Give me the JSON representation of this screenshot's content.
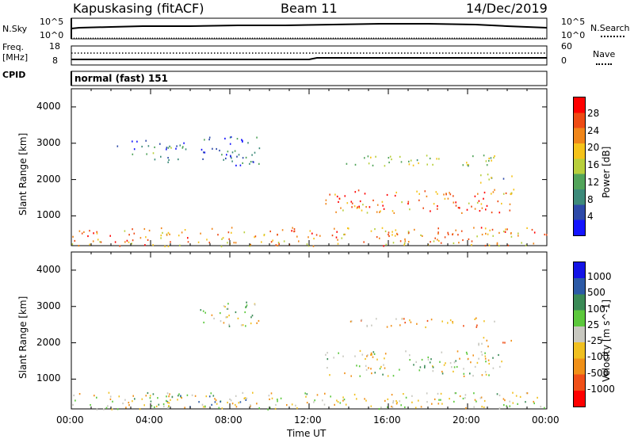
{
  "header": {
    "station": "Kapuskasing (fitACF)",
    "beam": "Beam 11",
    "date": "14/Dec/2019"
  },
  "top_panels": {
    "nsky_label": "N.Sky",
    "nsearch_label": "N.Search",
    "nsky_ticks": [
      "10^5",
      "10^0"
    ],
    "nsearch_ticks": [
      "10^5",
      "10^0"
    ],
    "freq_label": "Freq.",
    "freq_unit": "[MHz]",
    "freq_ticks": [
      "18",
      "8"
    ],
    "nave_label": "Nave",
    "nave_ticks": [
      "60",
      "0"
    ],
    "cpid_label": "CPID",
    "cpid_value": "normal (fast) 151"
  },
  "chart_data": [
    {
      "type": "heatmap",
      "name": "power",
      "ylabel": "Slant Range [km]",
      "yticks": [
        "1000",
        "2000",
        "3000",
        "4000"
      ],
      "ylim": [
        180,
        4500
      ],
      "colorbar_label": "Power [dB]",
      "colorbar_ticks": [
        "4",
        "8",
        "12",
        "16",
        "20",
        "24",
        "28"
      ],
      "colors": [
        "#1414ff",
        "#2d4aa8",
        "#3d8a7a",
        "#52a45a",
        "#b8cf3c",
        "#f5c31a",
        "#f0861a",
        "#ee4b14",
        "#ff0000"
      ],
      "regions": [
        {
          "t0": 0.0,
          "t1": 24.0,
          "r0": 180,
          "r1": 700,
          "level": 0.7
        },
        {
          "t0": 2.3,
          "t1": 5.8,
          "r0": 2500,
          "r1": 3100,
          "level": 0.25
        },
        {
          "t0": 6.5,
          "t1": 9.5,
          "r0": 2400,
          "r1": 3200,
          "level": 0.2
        },
        {
          "t0": 12.8,
          "t1": 22.3,
          "r0": 1100,
          "r1": 1750,
          "level": 0.75
        },
        {
          "t0": 13.8,
          "t1": 21.8,
          "r0": 2400,
          "r1": 2700,
          "level": 0.45
        },
        {
          "t0": 20.5,
          "t1": 22.3,
          "r0": 1900,
          "r1": 2200,
          "level": 0.4
        }
      ]
    },
    {
      "type": "heatmap",
      "name": "velocity",
      "ylabel": "Slant Range [km]",
      "yticks": [
        "1000",
        "2000",
        "3000",
        "4000"
      ],
      "ylim": [
        180,
        4500
      ],
      "xlabel": "Time UT",
      "xticks": [
        "00:00",
        "04:00",
        "08:00",
        "12:00",
        "16:00",
        "20:00",
        "00:00"
      ],
      "xlim": [
        0,
        24
      ],
      "colorbar_label": "Velocity [m s^-1]",
      "colorbar_ticks": [
        "1000",
        "500",
        "100",
        "25",
        "-25",
        "-100",
        "-500",
        "-1000"
      ],
      "colors": [
        "#1414e6",
        "#2c5aa6",
        "#3a8a56",
        "#5cc83c",
        "#c8c8c0",
        "#f0c020",
        "#f09018",
        "#f05018",
        "#ff0000"
      ],
      "regions": [
        {
          "t0": 0.0,
          "t1": 24.0,
          "r0": 180,
          "r1": 650,
          "level": 0.55
        },
        {
          "t0": 3.0,
          "t1": 9.0,
          "r0": 250,
          "r1": 650,
          "level": 0.35
        },
        {
          "t0": 6.5,
          "t1": 9.5,
          "r0": 2400,
          "r1": 3200,
          "level": 0.5
        },
        {
          "t0": 12.8,
          "t1": 21.8,
          "r0": 1100,
          "r1": 1800,
          "level": 0.5
        },
        {
          "t0": 13.8,
          "t1": 21.8,
          "r0": 2450,
          "r1": 2700,
          "level": 0.65
        },
        {
          "t0": 20.5,
          "t1": 22.3,
          "r0": 1900,
          "r1": 2200,
          "level": 0.7
        }
      ]
    }
  ]
}
